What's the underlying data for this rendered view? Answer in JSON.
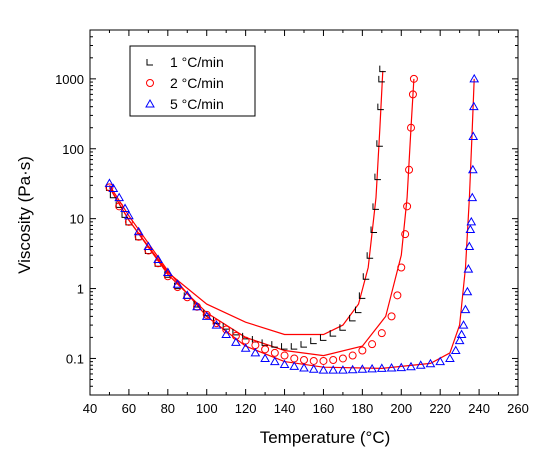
{
  "chart_data": {
    "type": "scatter",
    "xlabel": "Temperature (°C)",
    "ylabel": "Viscosity (Pa·s)",
    "xlim": [
      40,
      260
    ],
    "ylim": [
      0.03,
      5000
    ],
    "y_scale": "log",
    "x_ticks": [
      "40",
      "60",
      "80",
      "100",
      "120",
      "140",
      "160",
      "180",
      "200",
      "220",
      "240",
      "260"
    ],
    "y_ticks": [
      {
        "value": 0.1,
        "label": "0.1"
      },
      {
        "value": 1,
        "label": "1"
      },
      {
        "value": 10,
        "label": "10"
      },
      {
        "value": 100,
        "label": "100"
      },
      {
        "value": 1000,
        "label": "1000"
      }
    ],
    "legend_position": "top-left",
    "series": [
      {
        "name": "1 °C/min",
        "marker": "square",
        "color": "#000000",
        "points": [
          [
            50,
            28
          ],
          [
            52,
            22
          ],
          [
            55,
            16
          ],
          [
            58,
            11.5
          ],
          [
            60,
            9
          ],
          [
            65,
            5.5
          ],
          [
            70,
            3.5
          ],
          [
            75,
            2.3
          ],
          [
            80,
            1.6
          ],
          [
            85,
            1.1
          ],
          [
            90,
            0.8
          ],
          [
            95,
            0.6
          ],
          [
            100,
            0.45
          ],
          [
            105,
            0.35
          ],
          [
            110,
            0.29
          ],
          [
            115,
            0.24
          ],
          [
            120,
            0.21
          ],
          [
            125,
            0.19
          ],
          [
            130,
            0.17
          ],
          [
            135,
            0.16
          ],
          [
            140,
            0.15
          ],
          [
            145,
            0.15
          ],
          [
            150,
            0.16
          ],
          [
            155,
            0.18
          ],
          [
            160,
            0.2
          ],
          [
            165,
            0.23
          ],
          [
            170,
            0.28
          ],
          [
            175,
            0.38
          ],
          [
            178,
            0.5
          ],
          [
            180,
            0.8
          ],
          [
            182,
            1.5
          ],
          [
            184,
            3
          ],
          [
            186,
            7
          ],
          [
            187,
            15
          ],
          [
            188,
            40
          ],
          [
            189,
            120
          ],
          [
            189.5,
            400
          ],
          [
            190,
            1000
          ],
          [
            190.5,
            1400
          ]
        ]
      },
      {
        "name": "2 °C/min",
        "marker": "circle",
        "color": "#ff0000",
        "points": [
          [
            50,
            28
          ],
          [
            55,
            15
          ],
          [
            60,
            9
          ],
          [
            65,
            5.5
          ],
          [
            70,
            3.5
          ],
          [
            75,
            2.3
          ],
          [
            80,
            1.5
          ],
          [
            85,
            1.05
          ],
          [
            90,
            0.75
          ],
          [
            95,
            0.55
          ],
          [
            100,
            0.42
          ],
          [
            105,
            0.32
          ],
          [
            110,
            0.26
          ],
          [
            115,
            0.21
          ],
          [
            120,
            0.18
          ],
          [
            125,
            0.155
          ],
          [
            130,
            0.135
          ],
          [
            135,
            0.12
          ],
          [
            140,
            0.11
          ],
          [
            145,
            0.1
          ],
          [
            150,
            0.095
          ],
          [
            155,
            0.092
          ],
          [
            160,
            0.092
          ],
          [
            165,
            0.095
          ],
          [
            170,
            0.1
          ],
          [
            175,
            0.11
          ],
          [
            180,
            0.13
          ],
          [
            185,
            0.16
          ],
          [
            190,
            0.23
          ],
          [
            195,
            0.4
          ],
          [
            198,
            0.8
          ],
          [
            200,
            2
          ],
          [
            202,
            6
          ],
          [
            203,
            15
          ],
          [
            204,
            50
          ],
          [
            205,
            200
          ],
          [
            206,
            600
          ],
          [
            206.5,
            1000
          ]
        ]
      },
      {
        "name": "5 °C/min",
        "marker": "triangle",
        "color": "#0000ff",
        "points": [
          [
            50,
            32
          ],
          [
            52,
            27
          ],
          [
            55,
            20
          ],
          [
            58,
            14
          ],
          [
            60,
            11
          ],
          [
            65,
            6.5
          ],
          [
            70,
            4
          ],
          [
            75,
            2.6
          ],
          [
            80,
            1.7
          ],
          [
            85,
            1.15
          ],
          [
            90,
            0.8
          ],
          [
            95,
            0.55
          ],
          [
            100,
            0.4
          ],
          [
            105,
            0.3
          ],
          [
            110,
            0.22
          ],
          [
            115,
            0.17
          ],
          [
            120,
            0.14
          ],
          [
            125,
            0.12
          ],
          [
            130,
            0.1
          ],
          [
            135,
            0.09
          ],
          [
            140,
            0.082
          ],
          [
            145,
            0.077
          ],
          [
            150,
            0.073
          ],
          [
            155,
            0.07
          ],
          [
            160,
            0.068
          ],
          [
            165,
            0.068
          ],
          [
            170,
            0.068
          ],
          [
            175,
            0.069
          ],
          [
            180,
            0.07
          ],
          [
            185,
            0.071
          ],
          [
            190,
            0.072
          ],
          [
            195,
            0.073
          ],
          [
            200,
            0.074
          ],
          [
            205,
            0.076
          ],
          [
            210,
            0.08
          ],
          [
            215,
            0.084
          ],
          [
            220,
            0.09
          ],
          [
            225,
            0.1
          ],
          [
            228,
            0.13
          ],
          [
            230,
            0.18
          ],
          [
            231,
            0.22
          ],
          [
            232,
            0.3
          ],
          [
            233,
            0.5
          ],
          [
            234,
            0.9
          ],
          [
            234.5,
            1.9
          ],
          [
            235,
            4
          ],
          [
            235.5,
            7
          ],
          [
            236,
            9
          ],
          [
            236.5,
            20
          ],
          [
            236.8,
            50
          ],
          [
            237,
            150
          ],
          [
            237.3,
            400
          ],
          [
            237.5,
            1000
          ]
        ]
      }
    ],
    "fit_lines": [
      {
        "color": "#ff0000",
        "points": [
          [
            50,
            28
          ],
          [
            60,
            9.5
          ],
          [
            80,
            1.7
          ],
          [
            100,
            0.6
          ],
          [
            120,
            0.33
          ],
          [
            140,
            0.22
          ],
          [
            160,
            0.22
          ],
          [
            170,
            0.3
          ],
          [
            178,
            0.6
          ],
          [
            183,
            2
          ],
          [
            187,
            20
          ],
          [
            189,
            200
          ],
          [
            190.5,
            1300
          ]
        ]
      },
      {
        "color": "#ff0000",
        "points": [
          [
            50,
            28
          ],
          [
            60,
            9.5
          ],
          [
            80,
            1.6
          ],
          [
            100,
            0.45
          ],
          [
            120,
            0.2
          ],
          [
            140,
            0.13
          ],
          [
            160,
            0.11
          ],
          [
            180,
            0.15
          ],
          [
            192,
            0.4
          ],
          [
            200,
            3
          ],
          [
            203,
            20
          ],
          [
            205,
            200
          ],
          [
            206.5,
            1000
          ]
        ]
      },
      {
        "color": "#ff0000",
        "points": [
          [
            50,
            30
          ],
          [
            60,
            11
          ],
          [
            80,
            1.8
          ],
          [
            100,
            0.4
          ],
          [
            120,
            0.15
          ],
          [
            140,
            0.09
          ],
          [
            160,
            0.075
          ],
          [
            190,
            0.072
          ],
          [
            215,
            0.085
          ],
          [
            225,
            0.12
          ],
          [
            230,
            0.3
          ],
          [
            233,
            2
          ],
          [
            235,
            20
          ],
          [
            236.5,
            200
          ],
          [
            237.5,
            1000
          ]
        ]
      }
    ]
  }
}
